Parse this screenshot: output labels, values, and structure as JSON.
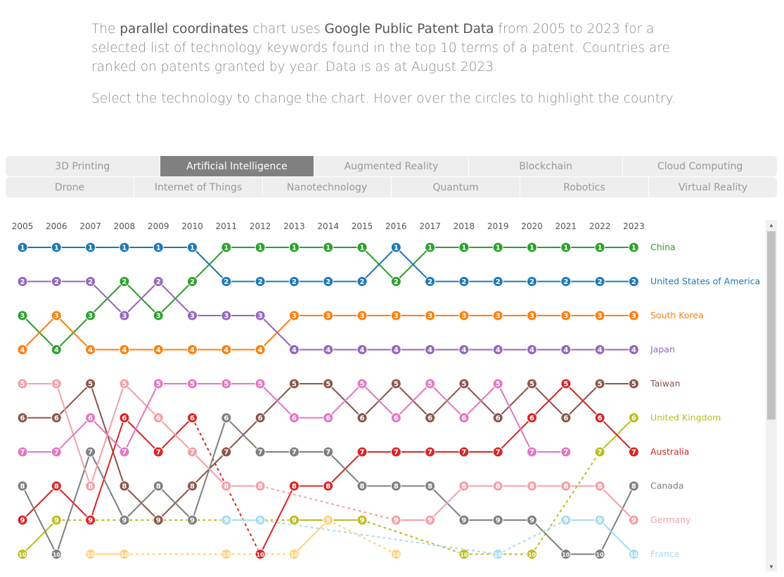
{
  "intro": {
    "p1_a": "The ",
    "p1_b": "parallel coordinates",
    "p1_c": " chart uses ",
    "p1_d": "Google Public Patent Data",
    "p1_e": " from 2005 to 2023 for a selected list of technology keywords found in the top 10 terms of a patent. Countries are ranked on patents granted by year. Data is as at August 2023.",
    "p2": "Select the technology to change the chart. Hover over the circles to highlight the country."
  },
  "tabs": {
    "row1": [
      "3D Printing",
      "Artificial Intelligence",
      "Augmented Reality",
      "Blockchain",
      "Cloud Computing"
    ],
    "row2": [
      "Drone",
      "Internet of Things",
      "Nanotechnology",
      "Quantum",
      "Robotics",
      "Virtual Reality"
    ],
    "active": "Artificial Intelligence"
  },
  "chart_data": {
    "type": "line",
    "x": [
      2005,
      2006,
      2007,
      2008,
      2009,
      2010,
      2011,
      2012,
      2013,
      2014,
      2015,
      2016,
      2017,
      2018,
      2019,
      2020,
      2021,
      2022,
      2023
    ],
    "y_inverted": true,
    "series": [
      {
        "name": "China",
        "color": "#2ca02c",
        "values": [
          3,
          4,
          3,
          2,
          3,
          2,
          1,
          1,
          1,
          1,
          1,
          2,
          1,
          1,
          1,
          1,
          1,
          1,
          1
        ]
      },
      {
        "name": "United States of America",
        "color": "#1f77b4",
        "values": [
          1,
          1,
          1,
          1,
          1,
          1,
          2,
          2,
          2,
          2,
          2,
          1,
          2,
          2,
          2,
          2,
          2,
          2,
          2
        ]
      },
      {
        "name": "South Korea",
        "color": "#ff7f0e",
        "values": [
          4,
          3,
          4,
          4,
          4,
          4,
          4,
          4,
          3,
          3,
          3,
          3,
          3,
          3,
          3,
          3,
          3,
          3,
          3
        ]
      },
      {
        "name": "Japan",
        "color": "#9467bd",
        "values": [
          2,
          2,
          2,
          3,
          2,
          3,
          3,
          3,
          4,
          4,
          4,
          4,
          4,
          4,
          4,
          4,
          4,
          4,
          4
        ]
      },
      {
        "name": "Taiwan",
        "color": "#8c564b",
        "values": [
          6,
          6,
          5,
          8,
          9,
          8,
          7,
          6,
          5,
          5,
          6,
          5,
          6,
          5,
          6,
          5,
          6,
          5,
          5
        ]
      },
      {
        "name": "United Kingdom",
        "color": "#bcbd22",
        "values": [
          10,
          9,
          null,
          null,
          null,
          null,
          null,
          null,
          9,
          9,
          9,
          null,
          null,
          10,
          null,
          10,
          null,
          7,
          6
        ]
      },
      {
        "name": "Australia",
        "color": "#d62728",
        "values": [
          9,
          8,
          9,
          6,
          7,
          6,
          null,
          10,
          8,
          8,
          7,
          7,
          7,
          7,
          7,
          6,
          5,
          6,
          7
        ]
      },
      {
        "name": "Canada",
        "color": "#7f7f7f",
        "values": [
          8,
          10,
          7,
          9,
          8,
          9,
          6,
          7,
          7,
          7,
          8,
          8,
          8,
          9,
          9,
          9,
          10,
          10,
          8
        ]
      },
      {
        "name": "Germany",
        "color": "#f4a0a8",
        "values": [
          5,
          5,
          8,
          5,
          6,
          7,
          8,
          8,
          null,
          null,
          null,
          9,
          9,
          8,
          8,
          8,
          8,
          8,
          9
        ]
      },
      {
        "name": "France",
        "color": "#a8dcf0",
        "values": [
          null,
          null,
          null,
          null,
          null,
          null,
          9,
          9,
          null,
          null,
          null,
          null,
          null,
          null,
          10,
          null,
          9,
          9,
          10
        ]
      },
      {
        "name": "",
        "color": "#e377c2",
        "values": [
          7,
          7,
          6,
          7,
          5,
          5,
          5,
          5,
          6,
          6,
          5,
          6,
          5,
          6,
          5,
          7,
          7,
          null,
          null
        ]
      },
      {
        "name": "",
        "color": "#ffd27f",
        "values": [
          null,
          null,
          10,
          10,
          null,
          null,
          10,
          null,
          10,
          9,
          null,
          10,
          null,
          null,
          null,
          null,
          null,
          null,
          null
        ]
      }
    ],
    "ylim": [
      1,
      10
    ]
  }
}
